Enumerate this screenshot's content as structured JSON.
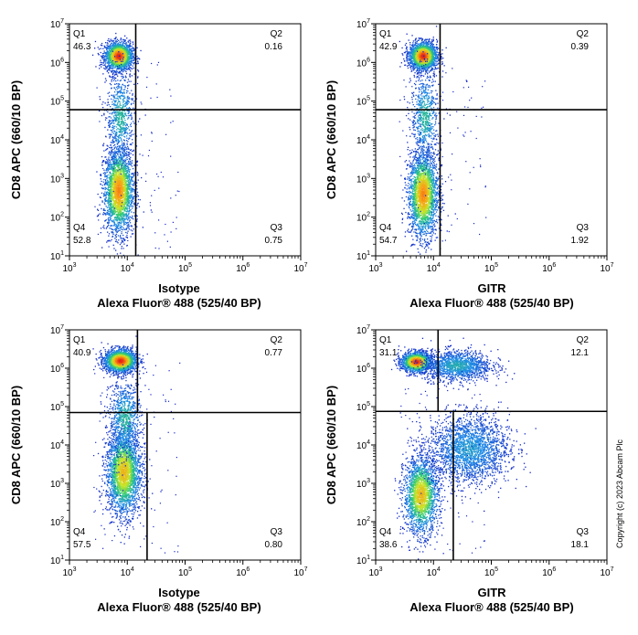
{
  "copyright": "Copyright (c) 2023 Abcam Plc",
  "chart_data": [
    {
      "type": "scatter",
      "name": "isotype-top",
      "xlabel_line1": "Isotype",
      "xlabel_line2": "Alexa Fluor® 488  (525/40 BP)",
      "ylabel": "CD8 APC (660/10 BP)",
      "x_scale": "log",
      "y_scale": "log",
      "xlim": [
        1000,
        10000000
      ],
      "ylim": [
        10,
        10000000
      ],
      "x_ticks": [
        "10^3",
        "10^4",
        "10^5",
        "10^6",
        "10^7"
      ],
      "y_ticks": [
        "10^1",
        "10^2",
        "10^3",
        "10^4",
        "10^5",
        "10^6",
        "10^7"
      ],
      "gate": {
        "x": 14000,
        "y": 60000
      },
      "quadrants": [
        {
          "name": "Q1",
          "value": "46.3"
        },
        {
          "name": "Q2",
          "value": "0.16"
        },
        {
          "name": "Q3",
          "value": "0.75"
        },
        {
          "name": "Q4",
          "value": "52.8"
        }
      ],
      "clusters": [
        {
          "x": 7000,
          "y": 1500000,
          "sx": 0.12,
          "sy": 0.18,
          "n": 2000,
          "peak": 1.0
        },
        {
          "x": 7000,
          "y": 500,
          "sx": 0.13,
          "sy": 0.55,
          "n": 2400,
          "peak": 0.85
        },
        {
          "x": 7500,
          "y": 40000,
          "sx": 0.12,
          "sy": 0.6,
          "n": 700,
          "peak": 0.4
        }
      ]
    },
    {
      "type": "scatter",
      "name": "gitr-top",
      "xlabel_line1": "GITR",
      "xlabel_line2": "Alexa Fluor® 488  (525/40 BP)",
      "ylabel": "CD8 APC (660/10 BP)",
      "x_scale": "log",
      "y_scale": "log",
      "xlim": [
        1000,
        10000000
      ],
      "ylim": [
        10,
        10000000
      ],
      "x_ticks": [
        "10^3",
        "10^4",
        "10^5",
        "10^6",
        "10^7"
      ],
      "y_ticks": [
        "10^1",
        "10^2",
        "10^3",
        "10^4",
        "10^5",
        "10^6",
        "10^7"
      ],
      "gate": {
        "x": 13000,
        "y": 60000
      },
      "quadrants": [
        {
          "name": "Q1",
          "value": "42.9"
        },
        {
          "name": "Q2",
          "value": "0.39"
        },
        {
          "name": "Q3",
          "value": "1.92"
        },
        {
          "name": "Q4",
          "value": "54.7"
        }
      ],
      "clusters": [
        {
          "x": 6500,
          "y": 1500000,
          "sx": 0.12,
          "sy": 0.18,
          "n": 2000,
          "peak": 1.0
        },
        {
          "x": 6500,
          "y": 400,
          "sx": 0.13,
          "sy": 0.55,
          "n": 2400,
          "peak": 0.85
        },
        {
          "x": 7000,
          "y": 40000,
          "sx": 0.12,
          "sy": 0.6,
          "n": 700,
          "peak": 0.4
        }
      ]
    },
    {
      "type": "scatter",
      "name": "isotype-bottom",
      "xlabel_line1": "Isotype",
      "xlabel_line2": "Alexa Fluor® 488  (525/40 BP)",
      "ylabel": "CD8 APC (660/10 BP)",
      "x_scale": "log",
      "y_scale": "log",
      "xlim": [
        1000,
        10000000
      ],
      "ylim": [
        10,
        10000000
      ],
      "x_ticks": [
        "10^3",
        "10^4",
        "10^5",
        "10^6",
        "10^7"
      ],
      "y_ticks": [
        "10^1",
        "10^2",
        "10^3",
        "10^4",
        "10^5",
        "10^6",
        "10^7"
      ],
      "gate": {
        "x_upper": 15000,
        "x_lower": 22000,
        "y": 70000
      },
      "quadrants": [
        {
          "name": "Q1",
          "value": "40.9"
        },
        {
          "name": "Q2",
          "value": "0.77"
        },
        {
          "name": "Q3",
          "value": "0.80"
        },
        {
          "name": "Q4",
          "value": "57.5"
        }
      ],
      "clusters": [
        {
          "x": 7500,
          "y": 1600000,
          "sx": 0.14,
          "sy": 0.15,
          "n": 2000,
          "peak": 1.0
        },
        {
          "x": 8500,
          "y": 2000,
          "sx": 0.15,
          "sy": 0.55,
          "n": 2600,
          "peak": 0.75
        },
        {
          "x": 9000,
          "y": 50000,
          "sx": 0.14,
          "sy": 0.5,
          "n": 800,
          "peak": 0.4
        }
      ]
    },
    {
      "type": "scatter",
      "name": "gitr-bottom",
      "xlabel_line1": "GITR",
      "xlabel_line2": "Alexa Fluor® 488  (525/40 BP)",
      "ylabel": "CD8 APC (660/10 BP)",
      "x_scale": "log",
      "y_scale": "log",
      "xlim": [
        1000,
        10000000
      ],
      "ylim": [
        10,
        10000000
      ],
      "x_ticks": [
        "10^3",
        "10^4",
        "10^5",
        "10^6",
        "10^7"
      ],
      "y_ticks": [
        "10^1",
        "10^2",
        "10^3",
        "10^4",
        "10^5",
        "10^6",
        "10^7"
      ],
      "gate": {
        "x_upper": 12000,
        "x_lower": 22000,
        "y": 75000
      },
      "quadrants": [
        {
          "name": "Q1",
          "value": "31.1"
        },
        {
          "name": "Q2",
          "value": "12.1"
        },
        {
          "name": "Q3",
          "value": "18.1"
        },
        {
          "name": "Q4",
          "value": "38.6"
        }
      ],
      "clusters": [
        {
          "x": 5000,
          "y": 1500000,
          "sx": 0.13,
          "sy": 0.13,
          "n": 1600,
          "peak": 1.0
        },
        {
          "x": 25000,
          "y": 1200000,
          "sx": 0.3,
          "sy": 0.2,
          "n": 1400,
          "peak": 0.35
        },
        {
          "x": 6000,
          "y": 500,
          "sx": 0.15,
          "sy": 0.5,
          "n": 2000,
          "peak": 0.75
        },
        {
          "x": 40000,
          "y": 8000,
          "sx": 0.35,
          "sy": 0.45,
          "n": 2200,
          "peak": 0.3
        }
      ]
    }
  ]
}
